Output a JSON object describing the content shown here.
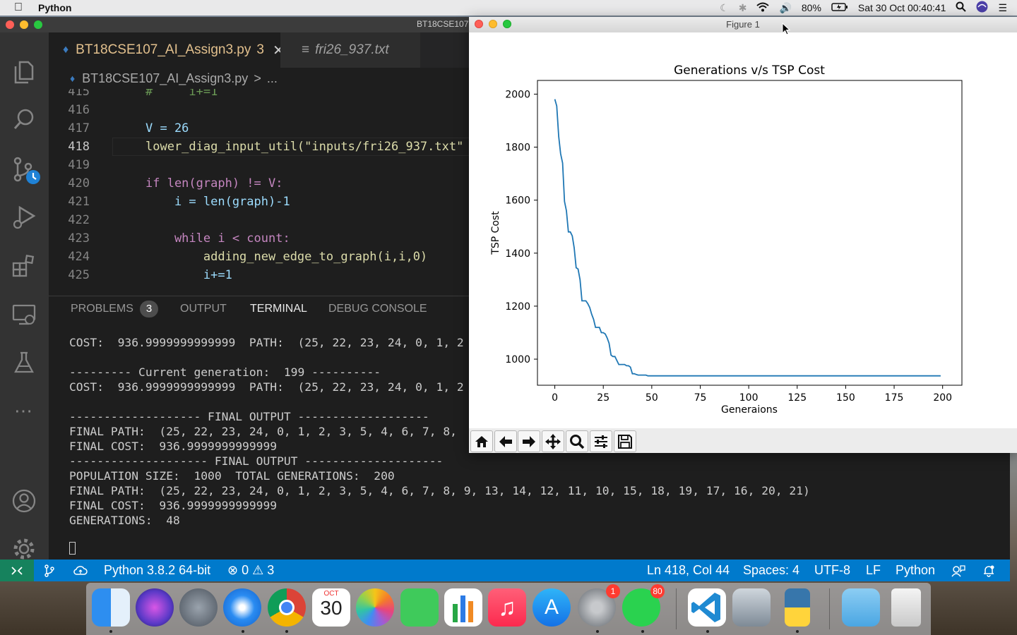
{
  "menubar": {
    "app_name": "Python",
    "battery": "80%",
    "datetime": "Sat 30 Oct  00:40:41"
  },
  "vscode": {
    "window_title": "BT18CSE107",
    "tabs": [
      {
        "label": "BT18CSE107_AI_Assign3.py",
        "badge": "3",
        "active": true
      },
      {
        "label": "fri26_937.txt",
        "active": false
      }
    ],
    "breadcrumb": {
      "file": "BT18CSE107_AI_Assign3.py",
      "sep": ">",
      "rest": "..."
    },
    "editor": {
      "current_line": "418",
      "lines": [
        {
          "num": "415",
          "text": "#     i+=1"
        },
        {
          "num": "416",
          "text": ""
        },
        {
          "num": "417",
          "text": "V = 26"
        },
        {
          "num": "418",
          "text": "lower_diag_input_util(\"inputs/fri26_937.txt\""
        },
        {
          "num": "419",
          "text": ""
        },
        {
          "num": "420",
          "text": "if len(graph) != V:"
        },
        {
          "num": "421",
          "text": "    i = len(graph)-1"
        },
        {
          "num": "422",
          "text": ""
        },
        {
          "num": "423",
          "text": "    while i < count:"
        },
        {
          "num": "424",
          "text": "        adding_new_edge_to_graph(i,i,0)"
        },
        {
          "num": "425",
          "text": "        i+=1"
        }
      ]
    },
    "panel_tabs": {
      "problems": "PROBLEMS",
      "problems_count": "3",
      "output": "OUTPUT",
      "terminal": "TERMINAL",
      "debug": "DEBUG CONSOLE"
    },
    "terminal_lines": [
      "COST:  936.9999999999999  PATH:  (25, 22, 23, 24, 0, 1, 2",
      "",
      "--------- Current generation:  199 ----------",
      "COST:  936.9999999999999  PATH:  (25, 22, 23, 24, 0, 1, 2",
      "",
      "------------------- FINAL OUTPUT -------------------",
      "FINAL PATH:  (25, 22, 23, 24, 0, 1, 2, 3, 5, 4, 6, 7, 8,",
      "FINAL COST:  936.9999999999999",
      "-------------------- FINAL OUTPUT --------------------",
      "POPULATION SIZE:  1000  TOTAL GENERATIONS:  200",
      "FINAL PATH:  (25, 22, 23, 24, 0, 1, 2, 3, 5, 4, 6, 7, 8, 9, 13, 14, 12, 11, 10, 15, 18, 19, 17, 16, 20, 21)",
      "FINAL COST:  936.9999999999999",
      "GENERATIONS:  48"
    ],
    "statusbar": {
      "interpreter": "Python 3.8.2 64-bit",
      "errors": "0",
      "warnings": "3",
      "position": "Ln 418, Col 44",
      "spaces": "Spaces: 4",
      "encoding": "UTF-8",
      "eol": "LF",
      "language": "Python"
    }
  },
  "figure": {
    "window_title": "Figure 1"
  },
  "chart_data": {
    "type": "line",
    "title": "Generations v/s TSP Cost",
    "xlabel": "Generaions",
    "ylabel": "TSP Cost",
    "xlim": [
      -8.95,
      209.95
    ],
    "ylim": [
      901.6,
      2051.7
    ],
    "xticks": [
      0,
      25,
      50,
      75,
      100,
      125,
      150,
      175,
      200
    ],
    "yticks": [
      1000,
      1200,
      1400,
      1600,
      1800,
      2000
    ],
    "series": [
      {
        "name": "TSP Cost",
        "color": "#1f77b4",
        "x": [
          0,
          1,
          2,
          3,
          4,
          5,
          6,
          7,
          8,
          9,
          10,
          11,
          12,
          13,
          14,
          15,
          16,
          17,
          18,
          19,
          20,
          21,
          22,
          23,
          24,
          25,
          26,
          27,
          28,
          29,
          30,
          31,
          32,
          33,
          34,
          35,
          36,
          37,
          38,
          39,
          40,
          41,
          42,
          43,
          44,
          45,
          46,
          47,
          48,
          60,
          80,
          100,
          120,
          140,
          160,
          180,
          199
        ],
        "y": [
          1981,
          1955,
          1840,
          1775,
          1740,
          1595,
          1560,
          1480,
          1480,
          1465,
          1420,
          1345,
          1340,
          1300,
          1220,
          1220,
          1220,
          1210,
          1195,
          1170,
          1150,
          1120,
          1120,
          1120,
          1100,
          1100,
          1095,
          1080,
          1060,
          1015,
          1010,
          1010,
          995,
          980,
          980,
          980,
          980,
          975,
          975,
          970,
          945,
          945,
          942,
          940,
          940,
          940,
          940,
          940,
          937,
          937,
          937,
          937,
          937,
          937,
          937,
          937,
          937
        ]
      }
    ]
  },
  "dock": {
    "calendar_month": "OCT",
    "calendar_day": "30",
    "settings_badge": "1",
    "whatsapp_badge": "80"
  }
}
